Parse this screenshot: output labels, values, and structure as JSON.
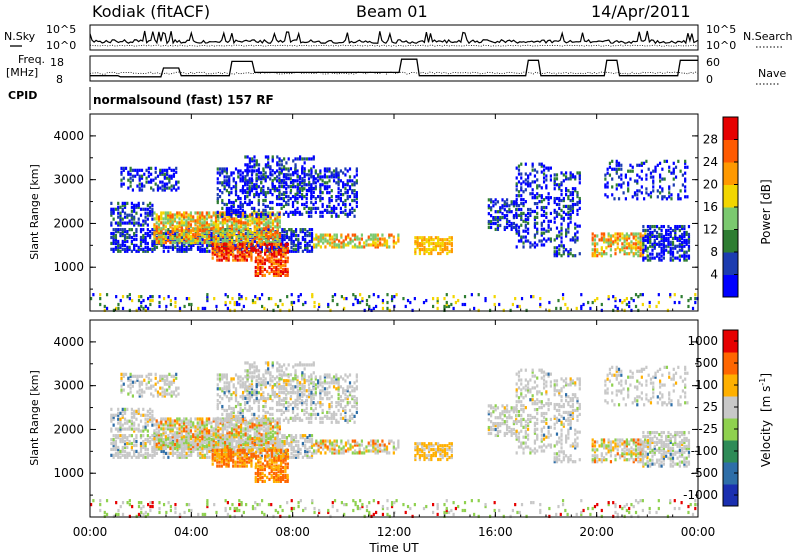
{
  "header": {
    "radar": "Kodiak (fitACF)",
    "beam": "Beam 01",
    "date": "14/Apr/2011"
  },
  "status_panels": {
    "nsky": {
      "label": "N.Sky",
      "yticks": [
        "10^5",
        "10^0"
      ]
    },
    "nsearch": {
      "label": "N.Search",
      "yticks": [
        "10^5",
        "10^0"
      ]
    },
    "freq": {
      "label_line1": "Freq.",
      "label_line2": "[MHz]",
      "yticks": [
        "18",
        "8"
      ]
    },
    "nave": {
      "label": "Nave",
      "yticks": [
        "60",
        "0"
      ]
    },
    "cpid": {
      "label": "CPID",
      "text": "normalsound (fast) 157 RF"
    }
  },
  "chart_data": [
    {
      "type": "heatmap",
      "name": "power",
      "ylabel": "Slant Range [km]",
      "yticks": [
        "1000",
        "2000",
        "3000",
        "4000"
      ],
      "colorbar": {
        "label": "Power [dB]",
        "ticks": [
          "4",
          "8",
          "12",
          "16",
          "20",
          "24",
          "28"
        ],
        "colors": [
          "#0000ff",
          "#1c3cb0",
          "#2e7d32",
          "#7bc96f",
          "#f2d600",
          "#ff9900",
          "#ff5a00",
          "#e60000"
        ]
      },
      "ylim": [
        0,
        4500
      ]
    },
    {
      "type": "heatmap",
      "name": "velocity",
      "ylabel": "Slant Range [km]",
      "yticks": [
        "1000",
        "2000",
        "3000",
        "4000"
      ],
      "colorbar": {
        "label_main": "Velocity",
        "label_unit": "[m s",
        "label_sup": "-1",
        "label_close": "]",
        "ticks": [
          "1000",
          "500",
          "100",
          "25",
          "-25",
          "-100",
          "-500",
          "-1000"
        ],
        "colors": [
          "#1a2fb0",
          "#2e6ea8",
          "#2e8b57",
          "#8fd14f",
          "#c8c8c8",
          "#ffb000",
          "#ff6600",
          "#e60000"
        ]
      },
      "ylim": [
        0,
        4500
      ]
    }
  ],
  "xaxis": {
    "label": "Time UT",
    "ticks": [
      "00:00",
      "04:00",
      "08:00",
      "12:00",
      "16:00",
      "20:00",
      "00:00"
    ]
  }
}
